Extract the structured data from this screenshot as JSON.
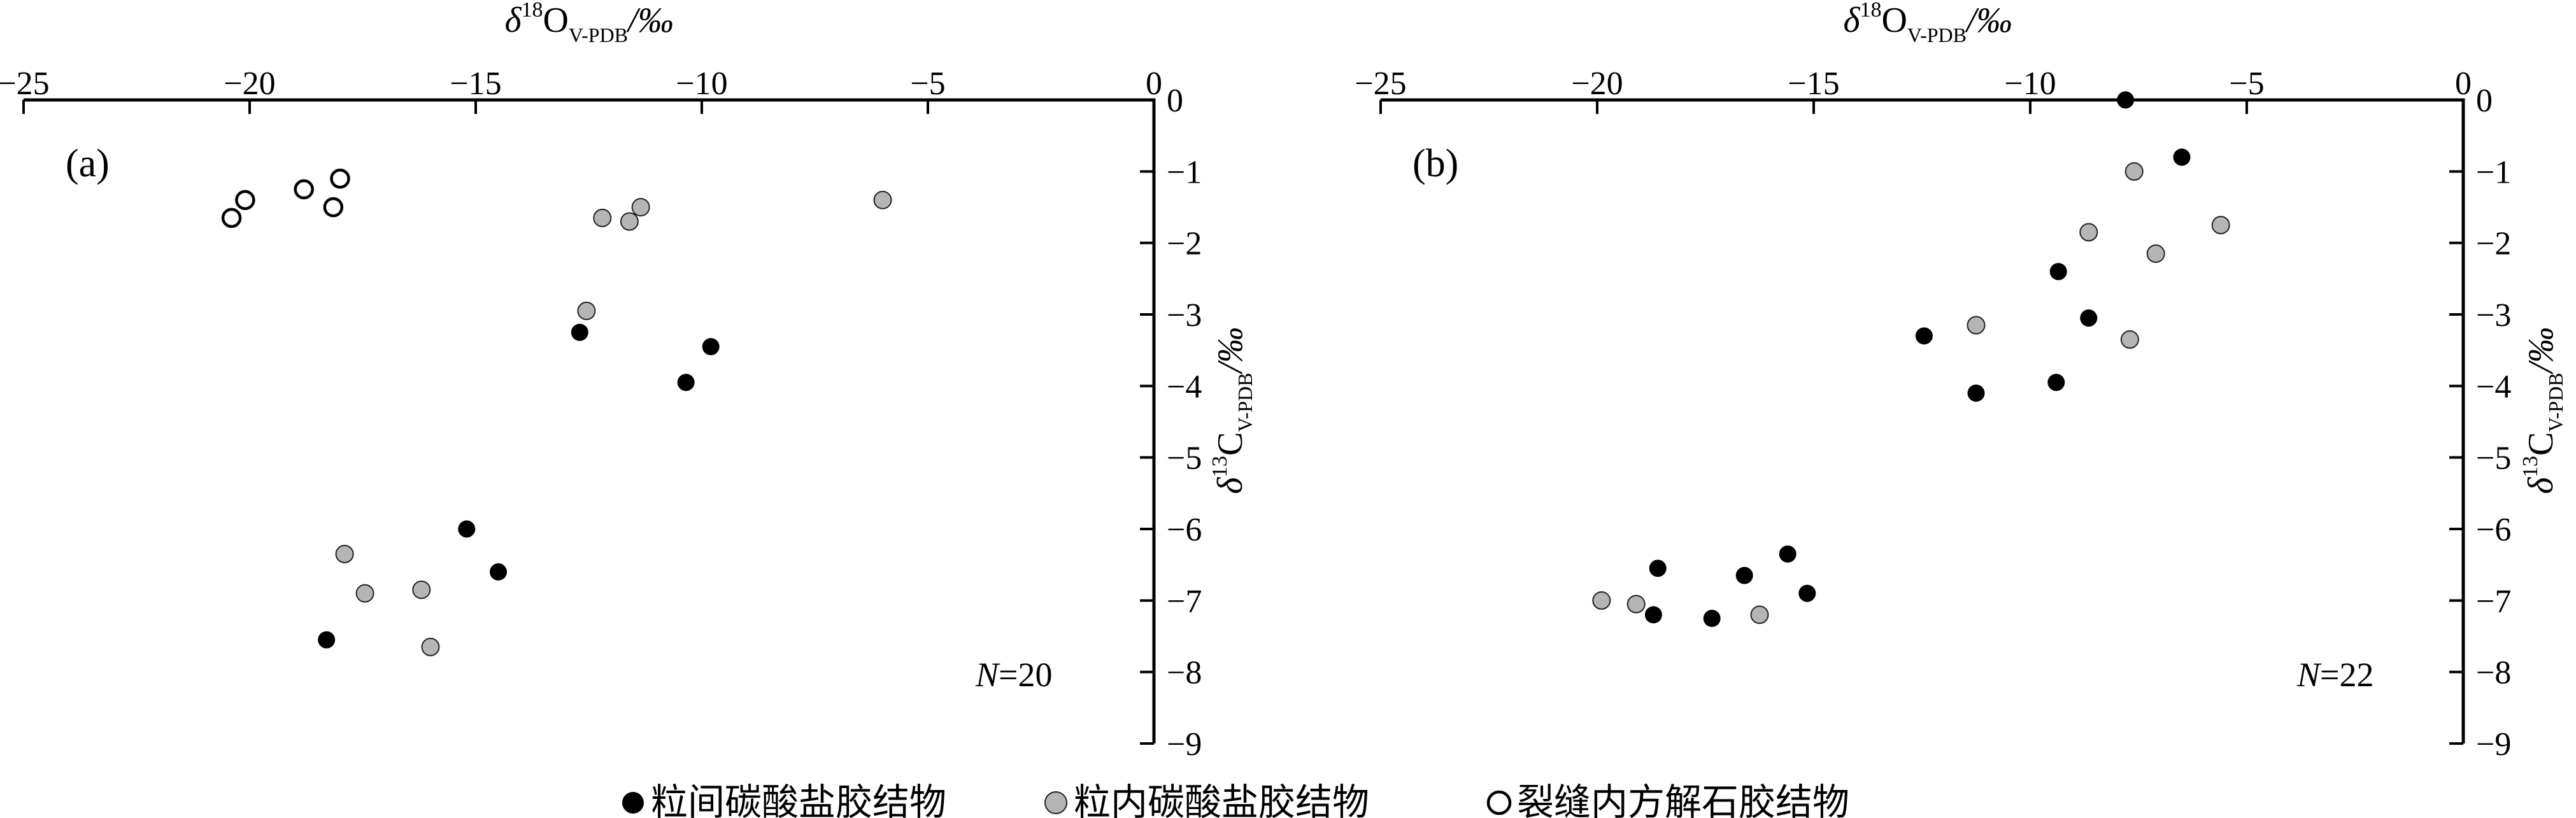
{
  "figure": {
    "x_axis_title": {
      "delta": "δ",
      "isotope": "18",
      "element": "O",
      "standard": "V-PDB",
      "unit": "/‰"
    },
    "y_axis_title": {
      "delta": "δ",
      "isotope": "13",
      "element": "C",
      "standard": "V-PDB",
      "unit": "/‰"
    },
    "colors": {
      "black_marker": "#000000",
      "gray_marker": "#b5b5b5",
      "gray_marker_stroke": "#222222",
      "open_marker_fill": "#ffffff",
      "open_marker_stroke": "#000000",
      "axis": "#000000"
    }
  },
  "legend": {
    "items": [
      {
        "marker": "black",
        "label": "粒间碳酸盐胶结物"
      },
      {
        "marker": "gray",
        "label": "粒内碳酸盐胶结物"
      },
      {
        "marker": "open",
        "label": "裂缝内方解石胶结物"
      }
    ]
  },
  "chart_data": [
    {
      "id": "a",
      "type": "scatter",
      "panel_label": "(a)",
      "sample_count": {
        "prefix": "N",
        "rest": "=20"
      },
      "xlim": [
        -25,
        0
      ],
      "ylim": [
        -9,
        0
      ],
      "grid": false,
      "xticks": {
        "values": [
          -25,
          -20,
          -15,
          -10,
          -5,
          0
        ],
        "labels": [
          "−25",
          "−20",
          "−15",
          "−10",
          "−5",
          "0"
        ]
      },
      "yticks": {
        "values": [
          0,
          -1,
          -2,
          -3,
          -4,
          -5,
          -6,
          -7,
          -8,
          -9
        ],
        "labels": [
          "0",
          "−1",
          "−2",
          "−3",
          "−4",
          "−5",
          "−6",
          "−7",
          "−8",
          "−9"
        ]
      },
      "series": [
        {
          "name": "粒间碳酸盐胶结物",
          "marker": "black",
          "points": [
            [
              -12.7,
              -3.25
            ],
            [
              -9.8,
              -3.45
            ],
            [
              -10.35,
              -3.95
            ],
            [
              -15.2,
              -6.0
            ],
            [
              -14.5,
              -6.6
            ],
            [
              -18.3,
              -7.55
            ]
          ]
        },
        {
          "name": "粒内碳酸盐胶结物",
          "marker": "gray",
          "points": [
            [
              -12.2,
              -1.65
            ],
            [
              -11.6,
              -1.7
            ],
            [
              -11.35,
              -1.5
            ],
            [
              -6.0,
              -1.4
            ],
            [
              -12.55,
              -2.95
            ],
            [
              -17.9,
              -6.35
            ],
            [
              -17.45,
              -6.9
            ],
            [
              -16.2,
              -6.85
            ],
            [
              -16.0,
              -7.65
            ]
          ]
        },
        {
          "name": "裂缝内方解石胶结物",
          "marker": "open",
          "points": [
            [
              -20.1,
              -1.4
            ],
            [
              -20.4,
              -1.65
            ],
            [
              -18.8,
              -1.25
            ],
            [
              -18.0,
              -1.1
            ],
            [
              -18.15,
              -1.5
            ]
          ]
        }
      ]
    },
    {
      "id": "b",
      "type": "scatter",
      "panel_label": "(b)",
      "sample_count": {
        "prefix": "N",
        "rest": "=22"
      },
      "xlim": [
        -25,
        0
      ],
      "ylim": [
        -9,
        0
      ],
      "grid": false,
      "xticks": {
        "values": [
          -25,
          -20,
          -15,
          -10,
          -5,
          0
        ],
        "labels": [
          "−25",
          "−20",
          "−15",
          "−10",
          "−5",
          "0"
        ]
      },
      "yticks": {
        "values": [
          0,
          -1,
          -2,
          -3,
          -4,
          -5,
          -6,
          -7,
          -8,
          -9
        ],
        "labels": [
          "0",
          "−1",
          "−2",
          "−3",
          "−4",
          "−5",
          "−6",
          "−7",
          "−8",
          "−9"
        ]
      },
      "series": [
        {
          "name": "粒间碳酸盐胶结物",
          "marker": "black",
          "points": [
            [
              -7.8,
              0
            ],
            [
              -6.5,
              -0.8
            ],
            [
              -9.35,
              -2.4
            ],
            [
              -8.65,
              -3.05
            ],
            [
              -12.45,
              -3.3
            ],
            [
              -9.4,
              -3.95
            ],
            [
              -11.25,
              -4.1
            ],
            [
              -15.6,
              -6.35
            ],
            [
              -18.6,
              -6.55
            ],
            [
              -16.6,
              -6.65
            ],
            [
              -15.15,
              -6.9
            ],
            [
              -18.7,
              -7.2
            ],
            [
              -17.35,
              -7.25
            ]
          ]
        },
        {
          "name": "粒内碳酸盐胶结物",
          "marker": "gray",
          "points": [
            [
              -7.6,
              -1.0
            ],
            [
              -5.6,
              -1.75
            ],
            [
              -8.65,
              -1.85
            ],
            [
              -7.1,
              -2.15
            ],
            [
              -11.25,
              -3.15
            ],
            [
              -7.7,
              -3.35
            ],
            [
              -19.9,
              -7.0
            ],
            [
              -19.1,
              -7.05
            ],
            [
              -16.25,
              -7.2
            ]
          ]
        },
        {
          "name": "裂缝内方解石胶结物",
          "marker": "open",
          "points": []
        }
      ]
    }
  ]
}
